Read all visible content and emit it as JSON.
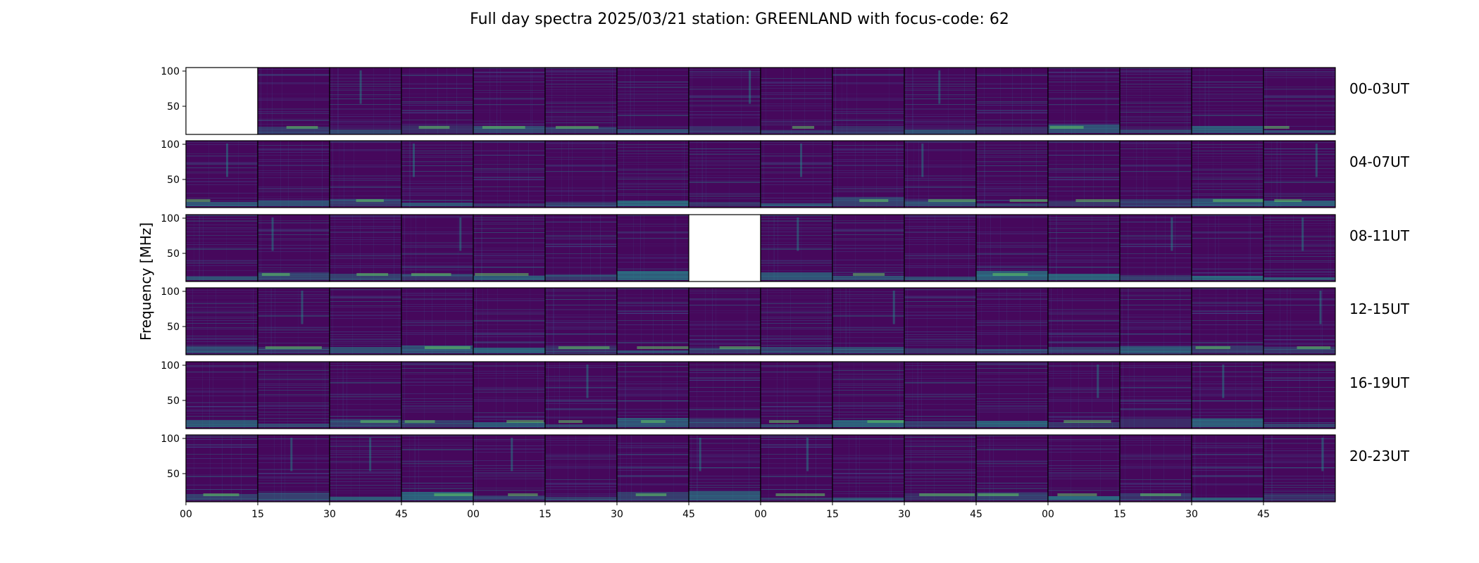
{
  "chart_data": {
    "type": "heatmap",
    "title": "Full day spectra 2025/03/21 station: GREENLAND with focus-code: 62",
    "ylabel": "Frequency [MHz]",
    "xlabel": "",
    "ylim": [
      10,
      105
    ],
    "y_ticks": [
      50,
      100
    ],
    "x_tick_labels": [
      "00",
      "15",
      "30",
      "45",
      "00",
      "15",
      "30",
      "45",
      "00",
      "15",
      "30",
      "45",
      "00",
      "15",
      "30",
      "45"
    ],
    "panels_per_row": 16,
    "row_labels": [
      "00-03UT",
      "04-07UT",
      "08-11UT",
      "12-15UT",
      "16-19UT",
      "20-23UT"
    ],
    "missing_panels": [
      [
        0,
        0
      ],
      [
        2,
        7
      ]
    ],
    "colormap": [
      "#440154",
      "#3b528b",
      "#21918c",
      "#5ec962",
      "#fde725"
    ],
    "background_color": "#46085c"
  }
}
